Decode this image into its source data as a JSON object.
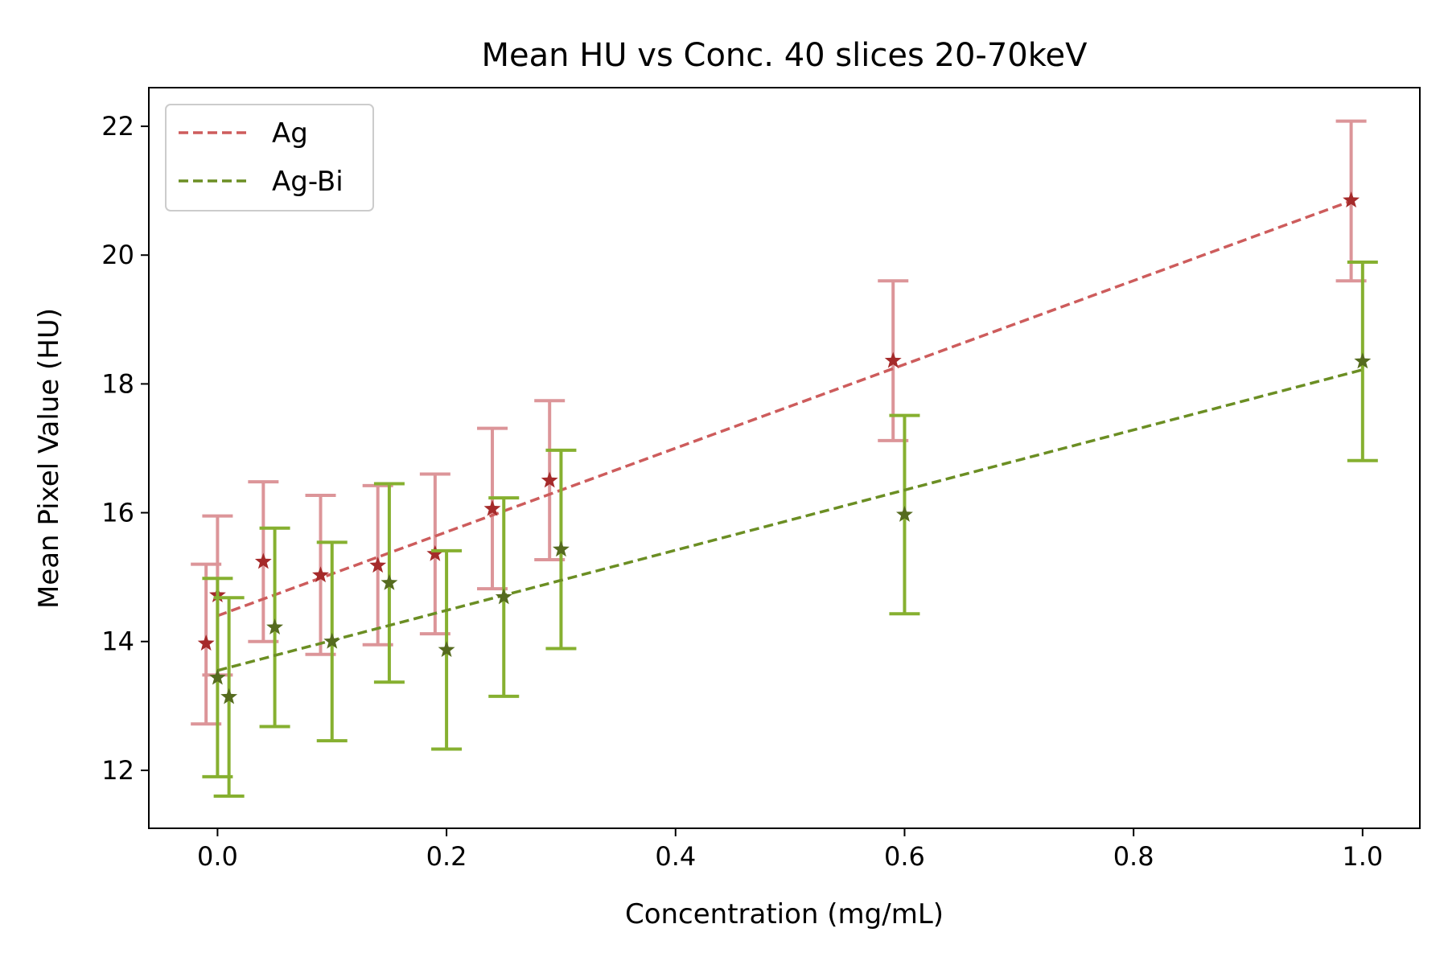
{
  "chart_data": {
    "type": "scatter",
    "title": "Mean HU vs Conc. 40 slices 20-70keV",
    "xlabel": "Concentration (mg/mL)",
    "ylabel": "Mean Pixel Value (HU)",
    "xlim": [
      -0.06,
      1.05
    ],
    "ylim": [
      11.1,
      22.6
    ],
    "x_ticks": [
      0.0,
      0.2,
      0.4,
      0.6,
      0.8,
      1.0
    ],
    "x_tick_labels": [
      "0.0",
      "0.2",
      "0.4",
      "0.6",
      "0.8",
      "1.0"
    ],
    "y_ticks": [
      12,
      14,
      16,
      18,
      20,
      22
    ],
    "y_tick_labels": [
      "12",
      "14",
      "16",
      "18",
      "20",
      "22"
    ],
    "grid": false,
    "legend_position": "top-left",
    "series": [
      {
        "name": "Ag",
        "color_marker": "#a52a2a",
        "color_error": "#dc9599",
        "color_fit": "#cd5c5c",
        "points": [
          {
            "x": -0.01,
            "y": 13.97,
            "err_low": 12.72,
            "err_high": 15.2
          },
          {
            "x": 0.0,
            "y": 14.72,
            "err_low": 13.48,
            "err_high": 15.95
          },
          {
            "x": 0.04,
            "y": 15.24,
            "err_low": 14.0,
            "err_high": 16.48
          },
          {
            "x": 0.09,
            "y": 15.03,
            "err_low": 13.8,
            "err_high": 16.27
          },
          {
            "x": 0.14,
            "y": 15.18,
            "err_low": 13.95,
            "err_high": 16.42
          },
          {
            "x": 0.19,
            "y": 15.36,
            "err_low": 14.12,
            "err_high": 16.6
          },
          {
            "x": 0.24,
            "y": 16.06,
            "err_low": 14.82,
            "err_high": 17.31
          },
          {
            "x": 0.29,
            "y": 16.5,
            "err_low": 15.27,
            "err_high": 17.74
          },
          {
            "x": 0.59,
            "y": 18.36,
            "err_low": 17.12,
            "err_high": 19.6
          },
          {
            "x": 0.99,
            "y": 20.85,
            "err_low": 19.6,
            "err_high": 22.08
          }
        ],
        "fit": {
          "x0": 0.0,
          "y0": 14.4,
          "x1": 0.99,
          "y1": 20.84
        }
      },
      {
        "name": "Ag-Bi",
        "color_marker": "#556b1f",
        "color_error": "#86b030",
        "color_fit": "#6b8e23",
        "points": [
          {
            "x": 0.0,
            "y": 13.44,
            "err_low": 11.9,
            "err_high": 14.98
          },
          {
            "x": 0.01,
            "y": 13.14,
            "err_low": 11.6,
            "err_high": 14.68
          },
          {
            "x": 0.05,
            "y": 14.22,
            "err_low": 12.68,
            "err_high": 15.76
          },
          {
            "x": 0.1,
            "y": 14.0,
            "err_low": 12.46,
            "err_high": 15.54
          },
          {
            "x": 0.15,
            "y": 14.91,
            "err_low": 13.37,
            "err_high": 16.45
          },
          {
            "x": 0.2,
            "y": 13.87,
            "err_low": 12.33,
            "err_high": 15.41
          },
          {
            "x": 0.25,
            "y": 14.69,
            "err_low": 13.15,
            "err_high": 16.23
          },
          {
            "x": 0.3,
            "y": 15.43,
            "err_low": 13.89,
            "err_high": 16.97
          },
          {
            "x": 0.6,
            "y": 15.97,
            "err_low": 14.43,
            "err_high": 17.51
          },
          {
            "x": 1.0,
            "y": 18.35,
            "err_low": 16.81,
            "err_high": 19.89
          }
        ],
        "fit": {
          "x0": 0.0,
          "y0": 13.55,
          "x1": 1.0,
          "y1": 18.22
        }
      }
    ]
  }
}
